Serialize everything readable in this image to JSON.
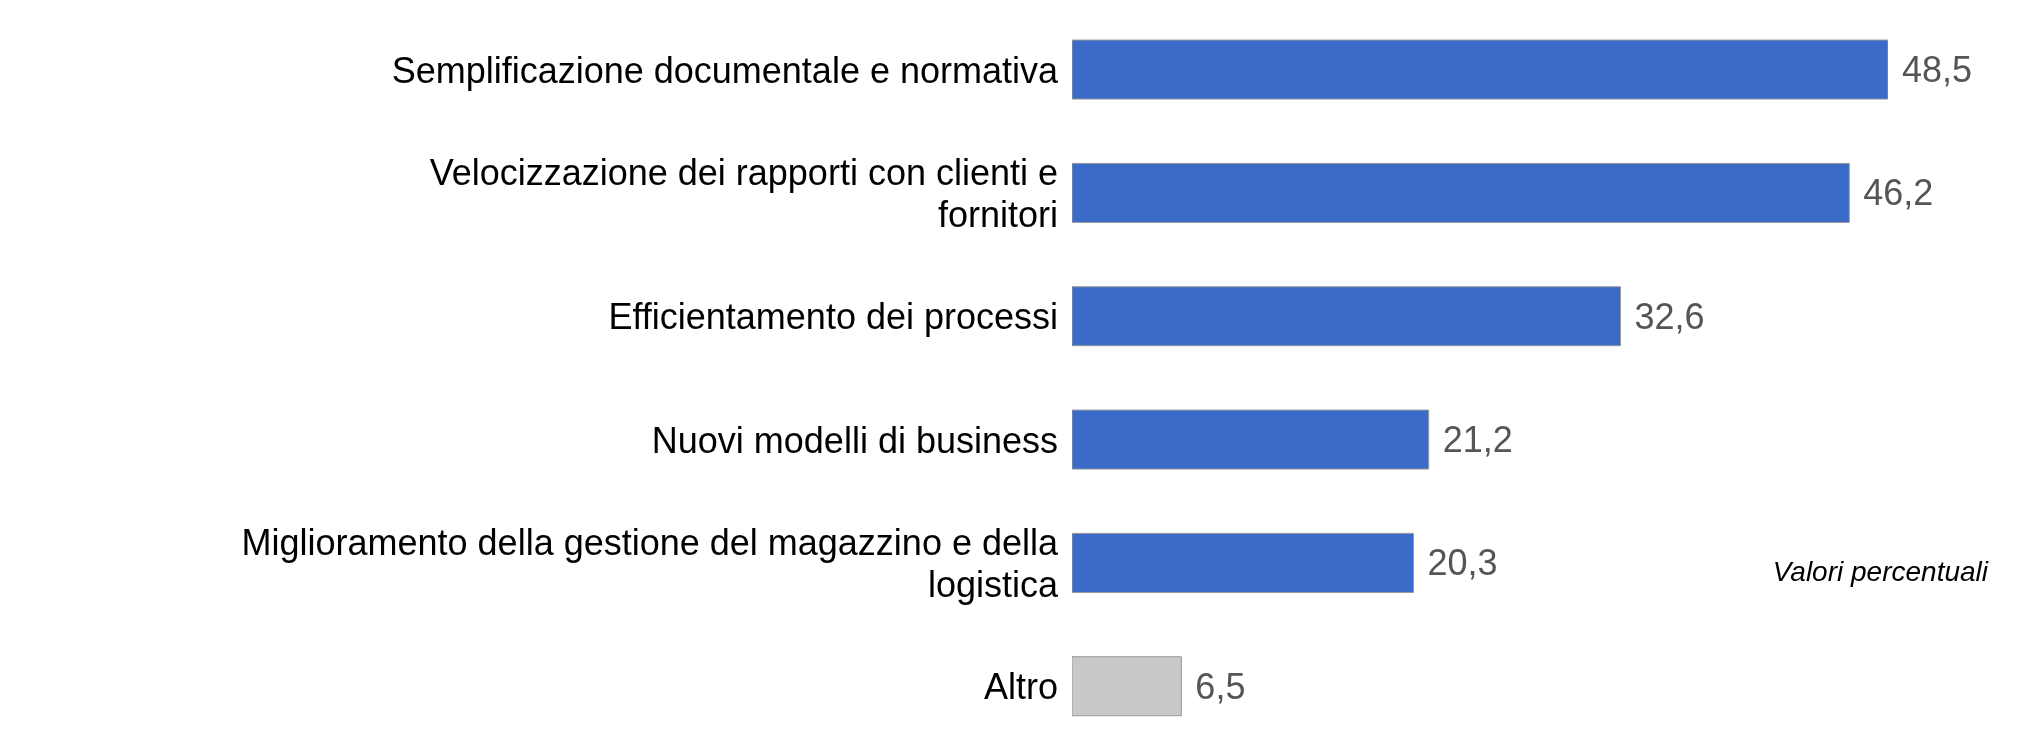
{
  "chart_data": {
    "type": "bar",
    "orientation": "horizontal",
    "categories": [
      "Semplificazione documentale e normativa",
      "Velocizzazione dei rapporti con clienti e fornitori",
      "Efficientamento dei processi",
      "Nuovi modelli di business",
      "Miglioramento della gestione del magazzino e della logistica",
      "Altro"
    ],
    "values": [
      48.5,
      46.2,
      32.6,
      21.2,
      20.3,
      6.5
    ],
    "colors": [
      "#3a6bc9",
      "#3a6bc9",
      "#3a6bc9",
      "#3a6bc9",
      "#3a6bc9",
      "#c8c8c8"
    ],
    "value_labels": [
      "48,5",
      "46,2",
      "32,6",
      "21,2",
      "20,3",
      "6,5"
    ],
    "annotations": [
      "Valori percentuali"
    ],
    "grid": false,
    "legend": false
  }
}
